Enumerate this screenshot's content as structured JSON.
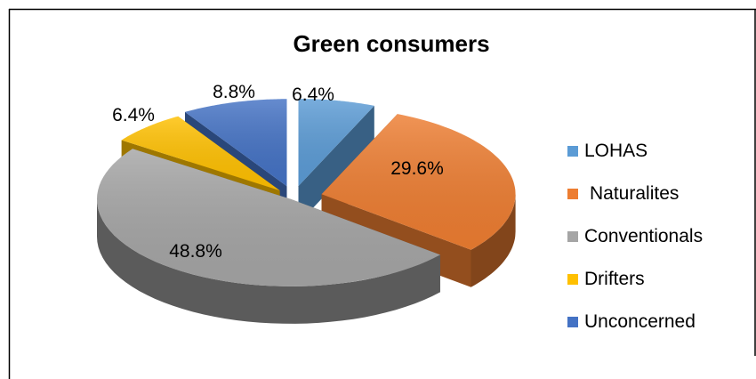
{
  "chart_data": {
    "type": "pie",
    "title": "Green consumers",
    "style": "3d-exploded",
    "legend_position": "right",
    "slices": [
      {
        "name": "LOHAS",
        "value": 6.4,
        "label": "6.4%",
        "color": "#5B9BD5"
      },
      {
        "name": "Naturalites",
        "value": 29.6,
        "label": "29.6%",
        "color": "#ED7D31"
      },
      {
        "name": "Conventionals",
        "value": 48.8,
        "label": "48.8%",
        "color": "#A5A5A5"
      },
      {
        "name": "Drifters",
        "value": 6.4,
        "label": "6.4%",
        "color": "#FFC000"
      },
      {
        "name": "Unconcerned",
        "value": 8.8,
        "label": "8.8%",
        "color": "#4472C4"
      }
    ]
  }
}
